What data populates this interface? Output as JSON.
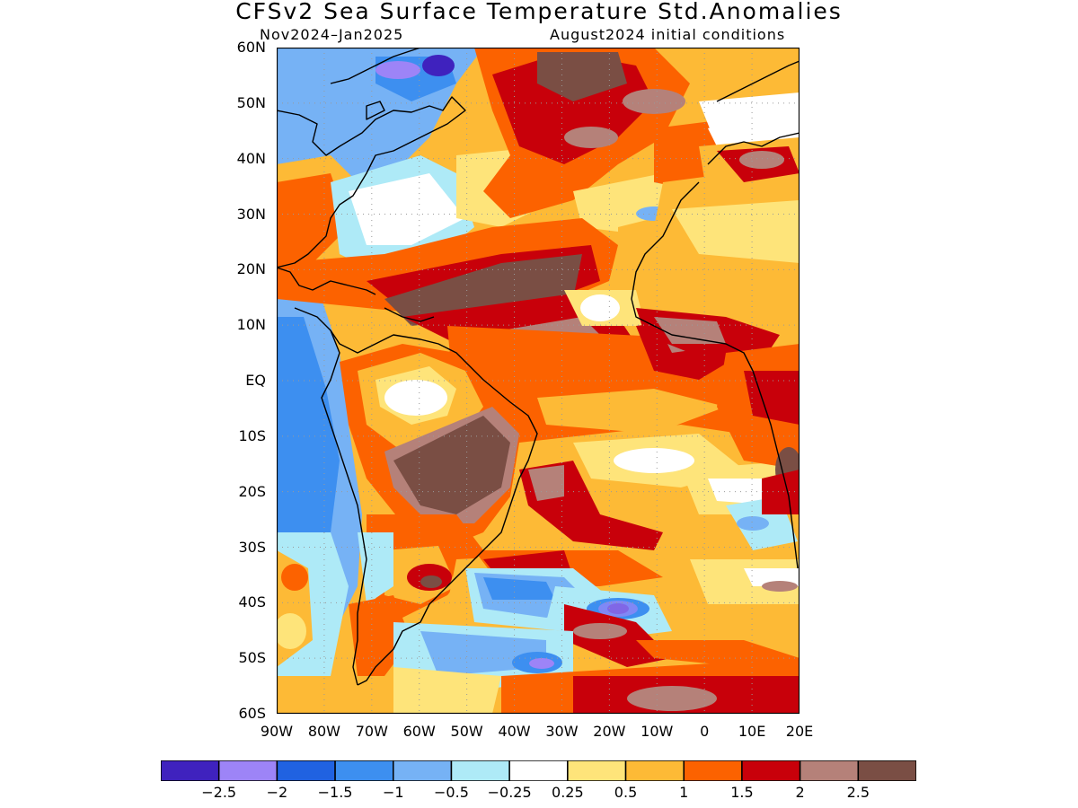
{
  "title": "CFSv2 Sea Surface Temperature Std.Anomalies",
  "subtitle_left": "Nov2024–Jan2025",
  "subtitle_right": "August2024 initial conditions",
  "lat_labels": [
    "60N",
    "50N",
    "40N",
    "30N",
    "20N",
    "10N",
    "EQ",
    "10S",
    "20S",
    "30S",
    "40S",
    "50S",
    "60S"
  ],
  "lon_labels": [
    "90W",
    "80W",
    "70W",
    "60W",
    "50W",
    "40W",
    "30W",
    "20W",
    "10W",
    "0",
    "10E",
    "20E"
  ],
  "map": {
    "lat_range": [
      -60,
      60
    ],
    "lon_range": [
      -90,
      20
    ],
    "grid_lines": "dotted",
    "regions": [
      {
        "name": "labrador-sea-negative",
        "level": -1.0,
        "lon": -65,
        "lat": 53,
        "rx": 16,
        "ry": 6
      },
      {
        "name": "east-of-newfoundland-negative",
        "level": -1.5,
        "lon": -59,
        "lat": 58,
        "rx": 3,
        "ry": 2
      },
      {
        "name": "us-east-coast-cool",
        "level": -0.5,
        "lon": -66,
        "lat": 38,
        "rx": 14,
        "ry": 5
      },
      {
        "name": "north-atlantic-warm-band",
        "level": 1.5,
        "lon": -40,
        "lat": 43,
        "rx": 24,
        "ry": 7
      },
      {
        "name": "north-atlantic-max",
        "level": 2.5,
        "lon": -40,
        "lat": 55,
        "rx": 8,
        "ry": 4
      },
      {
        "name": "caribbean-tropical-warm",
        "level": 2.5,
        "lon": -42,
        "lat": 18,
        "rx": 18,
        "ry": 5
      },
      {
        "name": "gulf-of-guinea-warm",
        "level": 2.5,
        "lon": -3,
        "lat": 8,
        "rx": 7,
        "ry": 3
      },
      {
        "name": "south-america-land-max",
        "level": 2.5,
        "lon": -48,
        "lat": -14,
        "rx": 9,
        "ry": 9
      },
      {
        "name": "south-atlantic-subtropical-cool",
        "level": -1.0,
        "lon": -38,
        "lat": -39,
        "rx": 10,
        "ry": 3
      },
      {
        "name": "south-atlantic-cool-core",
        "level": -2.0,
        "lon": -17,
        "lat": -41,
        "rx": 3,
        "ry": 1.5
      },
      {
        "name": "southern-ocean-warm",
        "level": 2.5,
        "lon": -8,
        "lat": -57,
        "rx": 6,
        "ry": 2
      },
      {
        "name": "eastern-pacific-cool",
        "level": -1.0,
        "lon": -87,
        "lat": 0,
        "rx": 6,
        "ry": 18
      },
      {
        "name": "mediterranean-warm",
        "level": 2.5,
        "lon": 10,
        "lat": 39,
        "rx": 5,
        "ry": 2
      }
    ]
  },
  "colorbar": {
    "colors": [
      "#3f22be",
      "#9d84f7",
      "#2062e1",
      "#3d8ff0",
      "#76b2f5",
      "#aeeaf7",
      "#ffffff",
      "#fee47a",
      "#fdba36",
      "#fc6200",
      "#c8000a",
      "#b58179",
      "#7a4e44"
    ],
    "labels": [
      "−2.5",
      "−2",
      "−1.5",
      "−1",
      "−0.5",
      "−0.25",
      "0.25",
      "0.5",
      "1",
      "1.5",
      "2",
      "2.5"
    ]
  }
}
